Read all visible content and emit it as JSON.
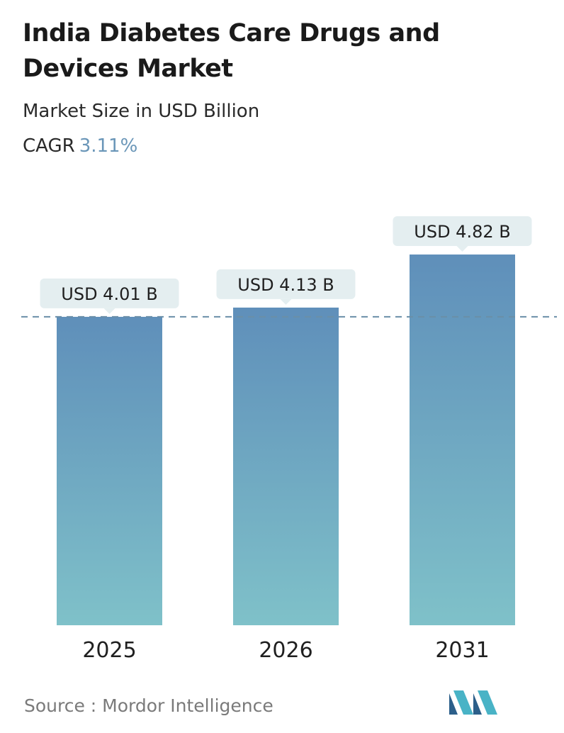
{
  "title": "India Diabetes Care Drugs and Devices Market",
  "subtitle": "Market Size in USD Billion",
  "cagr": {
    "label": "CAGR",
    "value": "3.11%"
  },
  "source": "Source :  Mordor Intelligence",
  "colors": {
    "bar_top": "#5f8fba",
    "bar_bottom": "#7fc1c9",
    "callout_bg": "#e4eef0",
    "reference_line": "#6a8fa8",
    "tick_text": "#1f1f1f",
    "logo_dark": "#2c5f8a",
    "logo_light": "#49b3c6"
  },
  "logo_icon": "mordor-intelligence-logo-icon",
  "chart_data": {
    "type": "bar",
    "categories": [
      "2025",
      "2026",
      "2031"
    ],
    "values": [
      4.01,
      4.13,
      4.82
    ],
    "data_labels": [
      "USD 4.01 B",
      "USD 4.13 B",
      "USD 4.82 B"
    ],
    "title": "India Diabetes Care Drugs and Devices Market",
    "subtitle": "Market Size in USD Billion",
    "ylabel": "",
    "xlabel": "",
    "reference_line": {
      "value": 4.01,
      "style": "dashed"
    },
    "grid": false,
    "legend": "none"
  }
}
